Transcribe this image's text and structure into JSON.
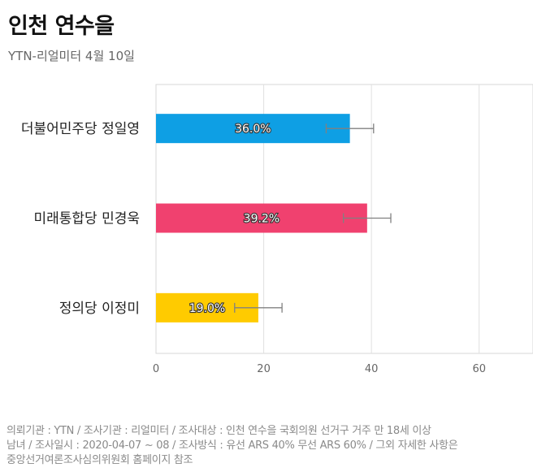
{
  "header": {
    "title": "인천 연수을",
    "subtitle": "YTN-리얼미터 4월 10일"
  },
  "chart_data": {
    "type": "bar",
    "orientation": "horizontal",
    "categories": [
      "더불어민주당 정일영",
      "미래통합당 민경욱",
      "정의당 이정미"
    ],
    "values": [
      36.0,
      39.2,
      19.0
    ],
    "value_labels": [
      "36.0%",
      "39.2%",
      "19.0%"
    ],
    "error_margin": 4.4,
    "colors": [
      "#0e9fe4",
      "#f0416f",
      "#ffcb00"
    ],
    "xlim": [
      0,
      70
    ],
    "xticks": [
      0,
      20,
      40,
      60
    ],
    "grid": true,
    "title": "인천 연수을",
    "xlabel": "",
    "ylabel": ""
  },
  "footnote": {
    "lines": [
      "의뢰기관 : YTN / 조사기관 : 리얼미터 / 조사대상 : 인천 연수을 국회의원 선거구 거주 만 18세 이상",
      "남녀 / 조사일시 : 2020-04-07 ~ 08 / 조사방식 : 유선 ARS 40% 무선 ARS 60% / 그외 자세한 사항은",
      "중앙선거여론조사심의위원회 홈페이지 참조"
    ]
  }
}
